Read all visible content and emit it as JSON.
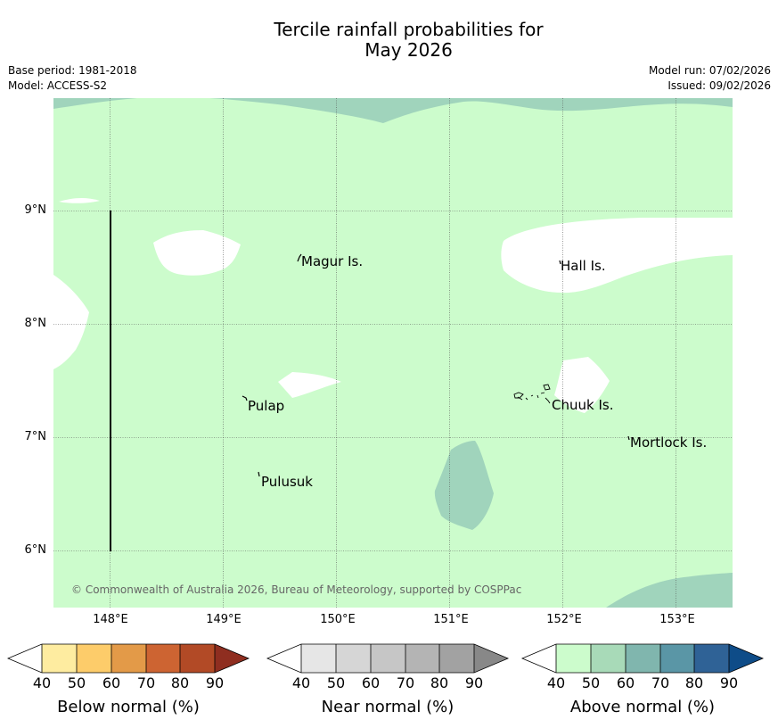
{
  "title": {
    "line1": "Tercile rainfall probabilities for",
    "line2": "May 2026"
  },
  "meta": {
    "base_period": "Base period: 1981-2018",
    "model": "Model: ACCESS-S2",
    "model_run": "Model run: 07/02/2026",
    "issued": "Issued: 09/02/2026"
  },
  "map": {
    "lat_labels": [
      "9°N",
      "8°N",
      "7°N",
      "6°N"
    ],
    "lon_labels": [
      "148°E",
      "149°E",
      "150°E",
      "151°E",
      "152°E",
      "153°E"
    ],
    "places": [
      "Magur Is.",
      "Hall Is.",
      "Pulap",
      "Chuuk Is.",
      "Mortlock Is.",
      "Pulusuk"
    ],
    "copyright": "© Commonwealth of Australia 2026, Bureau of Meteorology, supported by COSPPac",
    "colors": {
      "above_40_50": "#ccfccc",
      "above_50_60": "#a0d4bc",
      "no_signal": "#ffffff"
    }
  },
  "legend": {
    "ticks": [
      "40",
      "50",
      "60",
      "70",
      "80",
      "90"
    ],
    "below": {
      "label": "Below normal (%)",
      "colors": [
        "#ffffff",
        "#feeca0",
        "#fdcc6a",
        "#e39a48",
        "#cd6432",
        "#b24a26",
        "#8f2e20"
      ]
    },
    "near": {
      "label": "Near normal (%)",
      "colors": [
        "#ffffff",
        "#e6e6e6",
        "#d6d6d6",
        "#c6c6c6",
        "#b4b4b4",
        "#a2a2a2",
        "#888888"
      ]
    },
    "above": {
      "label": "Above normal (%)",
      "colors": [
        "#ffffff",
        "#ccfccc",
        "#a8dab8",
        "#80b6ae",
        "#5a96a6",
        "#2f6296",
        "#0e4c88"
      ]
    }
  }
}
